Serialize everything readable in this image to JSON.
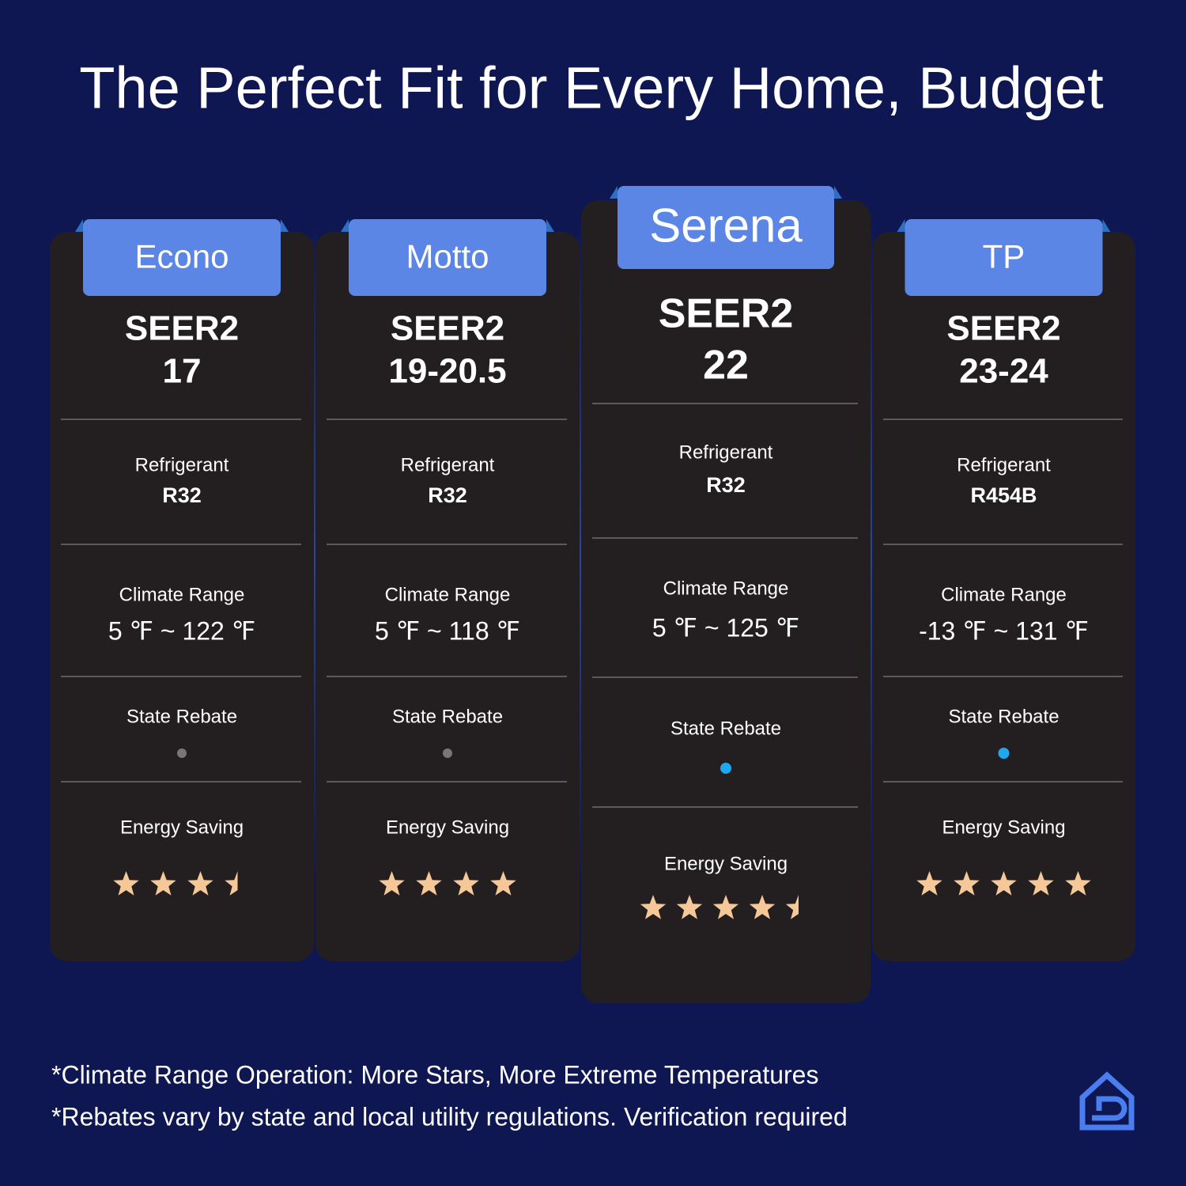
{
  "title": "The Perfect Fit for Every Home, Budget",
  "row_labels": {
    "seer": "SEER2",
    "refrigerant": "Refrigerant",
    "climate": "Climate Range",
    "rebate": "State Rebate",
    "energy": "Energy Saving"
  },
  "products": [
    {
      "name": "Econo",
      "seer": "17",
      "refrigerant": "R32",
      "climate": "5 ℉ ~ 122 ℉",
      "rebate_eligible": false,
      "rating": 3.5
    },
    {
      "name": "Motto",
      "seer": "19-20.5",
      "refrigerant": "R32",
      "climate": "5 ℉ ~ 118 ℉",
      "rebate_eligible": false,
      "rating": 4
    },
    {
      "name": "Serena",
      "seer": "22",
      "refrigerant": "R32",
      "climate": "5 ℉ ~ 125 ℉",
      "rebate_eligible": true,
      "rating": 4.5
    },
    {
      "name": "TP",
      "seer": "23-24",
      "refrigerant": "R454B",
      "climate": "-13 ℉ ~ 131 ℉",
      "rebate_eligible": true,
      "rating": 5
    }
  ],
  "footnotes": [
    "*Climate Range Operation: More Stars, More Extreme Temperatures",
    "*Rebates vary by state and local utility regulations. Verification required"
  ]
}
